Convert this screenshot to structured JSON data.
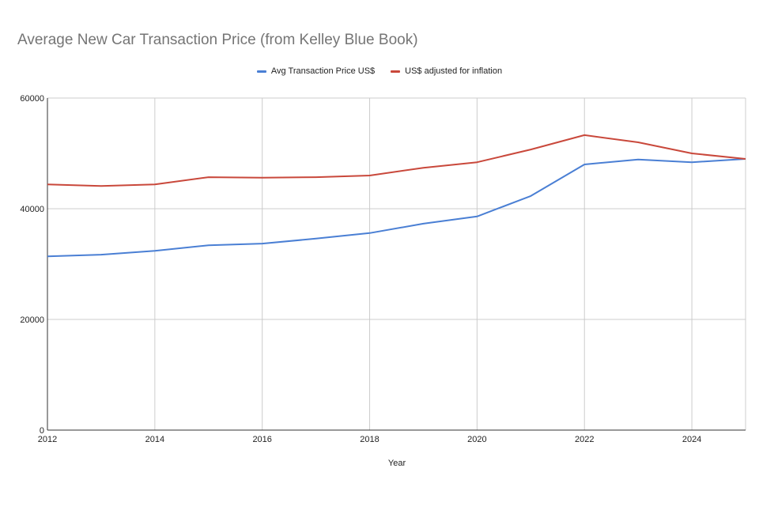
{
  "chart_data": {
    "type": "line",
    "title": "Average New Car Transaction Price (from Kelley Blue Book)",
    "xlabel": "Year",
    "ylabel": "",
    "x": [
      2012,
      2013,
      2014,
      2015,
      2016,
      2017,
      2018,
      2019,
      2020,
      2021,
      2022,
      2023,
      2024,
      2025
    ],
    "xlim": [
      2012,
      2025
    ],
    "ylim": [
      0,
      60000
    ],
    "xticks": [
      "2012",
      "2014",
      "2016",
      "2018",
      "2020",
      "2022",
      "2024"
    ],
    "yticks": [
      "0",
      "20000",
      "40000",
      "60000"
    ],
    "grid": true,
    "legend_position": "top-center",
    "series": [
      {
        "name": "Avg Transaction Price US$",
        "color": "#4a7fd4",
        "values": [
          31400,
          31700,
          32400,
          33400,
          33700,
          34600,
          35600,
          37300,
          38600,
          42300,
          48000,
          48900,
          48400,
          49000
        ]
      },
      {
        "name": "US$ adjusted for inflation",
        "color": "#c9483b",
        "values": [
          44400,
          44100,
          44400,
          45700,
          45600,
          45700,
          46000,
          47400,
          48400,
          50700,
          53300,
          52000,
          50000,
          49000
        ]
      }
    ]
  }
}
